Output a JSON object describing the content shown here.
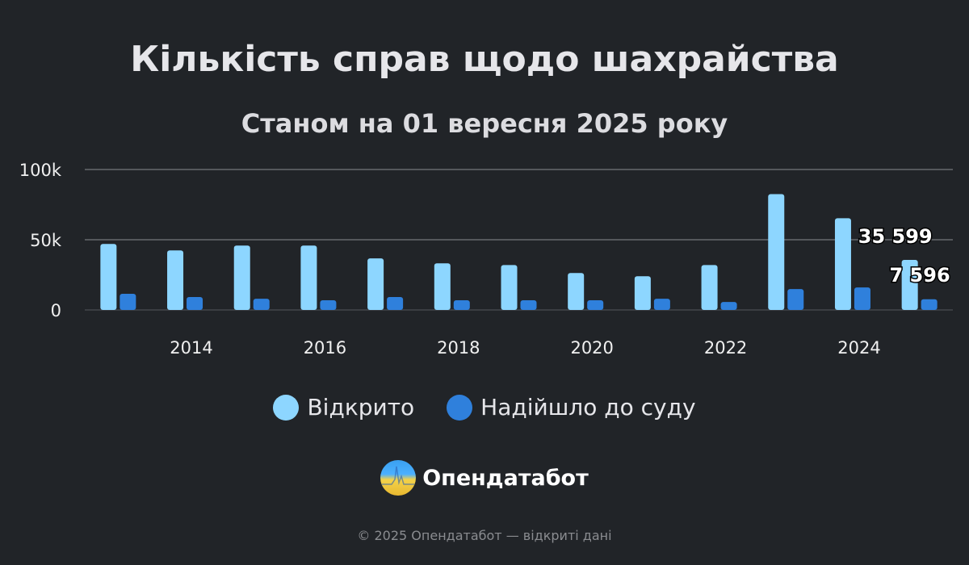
{
  "title": "Кількість справ щодо шахрайства",
  "subtitle": "Станом на 01 вересня 2025 року",
  "chart_data": {
    "type": "bar",
    "categories": [
      2013,
      2014,
      2015,
      2016,
      2017,
      2018,
      2019,
      2020,
      2021,
      2022,
      2023,
      2024,
      2025
    ],
    "x_tick_labels": [
      "2014",
      "2016",
      "2018",
      "2020",
      "2022",
      "2024"
    ],
    "y_tick_labels": [
      "0",
      "50k",
      "100k"
    ],
    "ylim": [
      0,
      100000
    ],
    "grid": true,
    "legend_placement": "bottom",
    "series": [
      {
        "name": "Відкрито",
        "color": "#8dd6ff",
        "values": [
          47000,
          42400,
          45800,
          45800,
          36700,
          33200,
          32000,
          26300,
          24000,
          32000,
          82500,
          65300,
          35599
        ]
      },
      {
        "name": "Надійшло до суду",
        "color": "#2f80dc",
        "values": [
          11500,
          9200,
          8000,
          6900,
          9200,
          6900,
          6900,
          6900,
          8000,
          5700,
          14900,
          16000,
          7596
        ]
      }
    ],
    "data_labels": [
      "35 599",
      "7 596"
    ]
  },
  "brand": {
    "name": "Опендатабот"
  },
  "footer": "© 2025 Опендатабот — відкриті дані"
}
